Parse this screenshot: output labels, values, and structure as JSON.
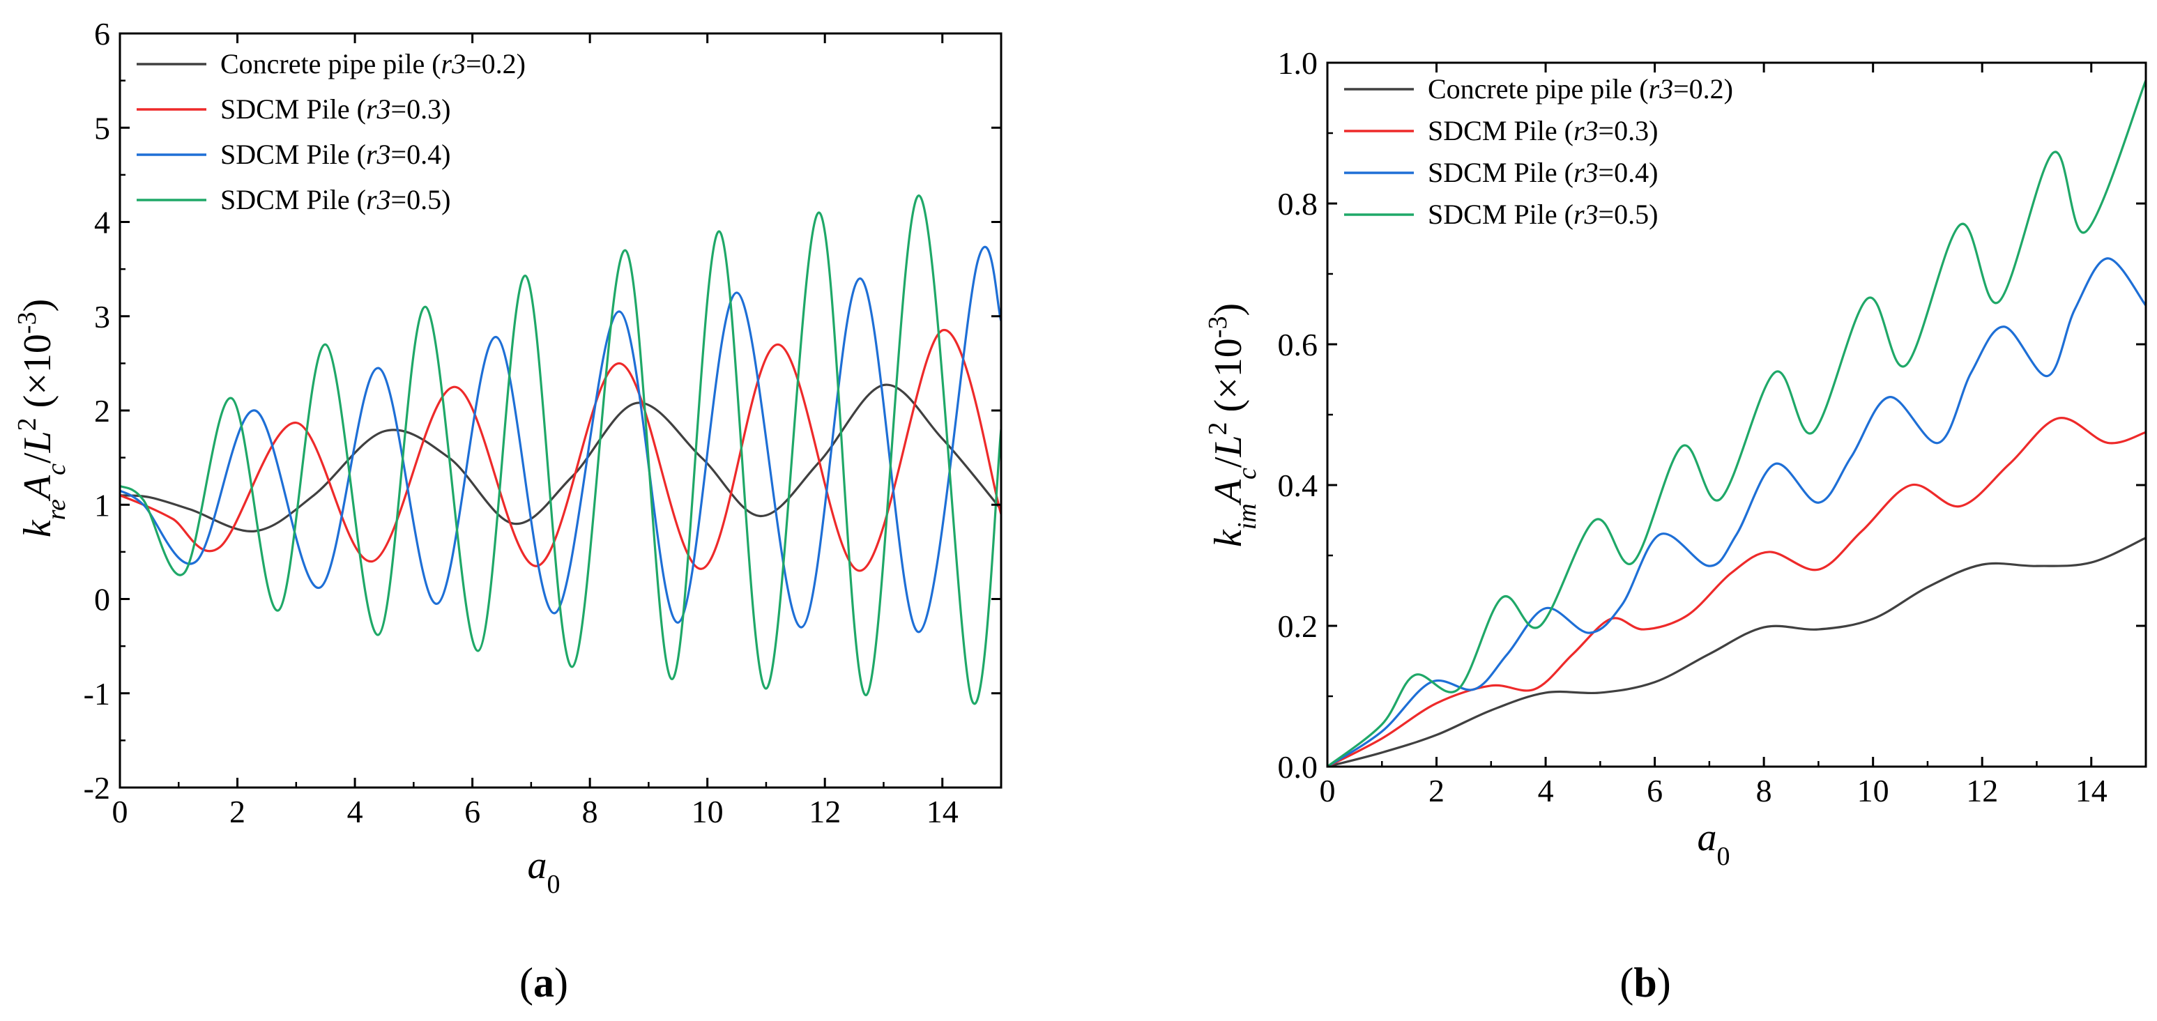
{
  "chart_data": [
    {
      "type": "line",
      "panel_label": "(a)",
      "xlabel": "a0",
      "ylabel": "k_re A_c / L^2 (×10^-3)",
      "xlim": [
        0,
        15
      ],
      "ylim": [
        -2,
        6
      ],
      "xticks": [
        0,
        2,
        4,
        6,
        8,
        10,
        12,
        14
      ],
      "xtick_labels": [
        "0",
        "2",
        "4",
        "6",
        "8",
        "10",
        "12",
        "14"
      ],
      "yticks": [
        -2,
        -1,
        0,
        1,
        2,
        3,
        4,
        5,
        6
      ],
      "ytick_labels": [
        "-2",
        "-1",
        "0",
        "1",
        "2",
        "3",
        "4",
        "5",
        "6"
      ],
      "legend_position": "top-left",
      "series": [
        {
          "name": "Concrete pipe pile",
          "param": "(r3=0.2)",
          "color": "#404040",
          "x": [
            0,
            0.5,
            1.2,
            2.3,
            3.3,
            4.5,
            5.6,
            6.7,
            7.7,
            8.8,
            9.9,
            10.9,
            11.9,
            13.0,
            14.0,
            15.0
          ],
          "y": [
            1.1,
            1.08,
            0.95,
            0.72,
            1.1,
            1.78,
            1.5,
            0.8,
            1.3,
            2.08,
            1.5,
            0.88,
            1.45,
            2.27,
            1.7,
            0.95
          ]
        },
        {
          "name": "SDCM Pile",
          "param": "(r3=0.3)",
          "color": "#ee2a2a",
          "x": [
            0,
            0.4,
            0.9,
            1.7,
            3.0,
            4.3,
            5.7,
            7.1,
            8.5,
            9.9,
            11.2,
            12.6,
            14.0,
            15.0
          ],
          "y": [
            1.1,
            1.0,
            0.85,
            0.55,
            1.87,
            0.4,
            2.25,
            0.35,
            2.5,
            0.32,
            2.7,
            0.3,
            2.85,
            0.9
          ]
        },
        {
          "name": "SDCM Pile",
          "param": "(r3=0.4)",
          "color": "#1e6fd6",
          "x": [
            0,
            0.4,
            1.3,
            2.3,
            3.4,
            4.4,
            5.4,
            6.4,
            7.4,
            8.5,
            9.5,
            10.5,
            11.6,
            12.6,
            13.6,
            14.6,
            15.0
          ],
          "y": [
            1.15,
            1.0,
            0.4,
            2.0,
            0.12,
            2.45,
            -0.05,
            2.78,
            -0.15,
            3.05,
            -0.25,
            3.25,
            -0.3,
            3.4,
            -0.35,
            3.58,
            2.95
          ]
        },
        {
          "name": "SDCM Pile",
          "param": "(r3=0.5)",
          "color": "#1fa868",
          "x": [
            0,
            0.4,
            1.1,
            1.9,
            2.7,
            3.5,
            4.4,
            5.2,
            6.1,
            6.9,
            7.7,
            8.6,
            9.4,
            10.2,
            11.0,
            11.9,
            12.7,
            13.6,
            14.5,
            15.0
          ],
          "y": [
            1.2,
            1.05,
            0.28,
            2.13,
            -0.12,
            2.7,
            -0.38,
            3.1,
            -0.55,
            3.43,
            -0.72,
            3.7,
            -0.85,
            3.9,
            -0.95,
            4.1,
            -1.02,
            4.28,
            -1.07,
            1.8
          ]
        }
      ]
    },
    {
      "type": "line",
      "panel_label": "(b)",
      "xlabel": "a0",
      "ylabel": "k_im A_c / L^2 (×10^-3)",
      "xlim": [
        0,
        15
      ],
      "ylim": [
        0,
        1.0
      ],
      "xticks": [
        0,
        2,
        4,
        6,
        8,
        10,
        12,
        14
      ],
      "xtick_labels": [
        "0",
        "2",
        "4",
        "6",
        "8",
        "10",
        "12",
        "14"
      ],
      "yticks": [
        0.0,
        0.2,
        0.4,
        0.6,
        0.8,
        1.0
      ],
      "ytick_labels": [
        "0.0",
        "0.2",
        "0.4",
        "0.6",
        "0.8",
        "1.0"
      ],
      "legend_position": "top-left",
      "series": [
        {
          "name": "Concrete pipe pile",
          "param": "(r3=0.2)",
          "color": "#404040",
          "x": [
            0,
            1,
            2,
            3,
            4,
            5,
            6,
            7,
            8,
            9,
            10,
            11,
            12,
            13,
            14,
            15
          ],
          "y": [
            0.0,
            0.02,
            0.045,
            0.08,
            0.105,
            0.105,
            0.12,
            0.16,
            0.198,
            0.195,
            0.21,
            0.255,
            0.287,
            0.285,
            0.29,
            0.325
          ]
        },
        {
          "name": "SDCM Pile",
          "param": "(r3=0.3)",
          "color": "#ee2a2a",
          "x": [
            0,
            1,
            2,
            3,
            3.8,
            4.5,
            5.2,
            5.8,
            6.6,
            7.4,
            8.1,
            9.0,
            9.8,
            10.7,
            11.6,
            12.5,
            13.4,
            14.3,
            15.0
          ],
          "y": [
            0.0,
            0.04,
            0.09,
            0.115,
            0.11,
            0.16,
            0.21,
            0.195,
            0.215,
            0.275,
            0.305,
            0.28,
            0.335,
            0.4,
            0.37,
            0.43,
            0.495,
            0.46,
            0.475
          ]
        },
        {
          "name": "SDCM Pile",
          "param": "(r3=0.4)",
          "color": "#1e6fd6",
          "x": [
            0,
            1,
            1.9,
            2.7,
            3.3,
            4.0,
            4.8,
            5.4,
            6.1,
            7.0,
            7.5,
            8.2,
            9.0,
            9.6,
            10.3,
            11.2,
            11.8,
            12.4,
            13.2,
            13.7,
            14.3,
            15.0
          ],
          "y": [
            0.0,
            0.05,
            0.12,
            0.11,
            0.16,
            0.225,
            0.19,
            0.23,
            0.33,
            0.285,
            0.33,
            0.43,
            0.375,
            0.44,
            0.525,
            0.46,
            0.56,
            0.625,
            0.555,
            0.65,
            0.722,
            0.655
          ]
        },
        {
          "name": "SDCM Pile",
          "param": "(r3=0.5)",
          "color": "#1fa868",
          "x": [
            0,
            1,
            1.6,
            2.4,
            3.2,
            3.9,
            4.9,
            5.6,
            6.5,
            7.2,
            8.2,
            8.9,
            9.9,
            10.6,
            11.6,
            12.3,
            13.3,
            13.9,
            15.0
          ],
          "y": [
            0.0,
            0.06,
            0.13,
            0.11,
            0.24,
            0.2,
            0.35,
            0.29,
            0.455,
            0.38,
            0.56,
            0.475,
            0.665,
            0.57,
            0.77,
            0.66,
            0.872,
            0.76,
            0.975
          ]
        }
      ]
    }
  ]
}
